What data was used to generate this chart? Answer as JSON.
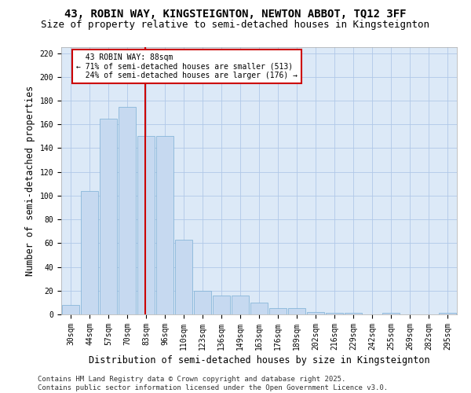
{
  "title_line1": "43, ROBIN WAY, KINGSTEIGNTON, NEWTON ABBOT, TQ12 3FF",
  "title_line2": "Size of property relative to semi-detached houses in Kingsteignton",
  "xlabel": "Distribution of semi-detached houses by size in Kingsteignton",
  "ylabel": "Number of semi-detached properties",
  "categories": [
    "30sqm",
    "44sqm",
    "57sqm",
    "70sqm",
    "83sqm",
    "96sqm",
    "110sqm",
    "123sqm",
    "136sqm",
    "149sqm",
    "163sqm",
    "176sqm",
    "189sqm",
    "202sqm",
    "216sqm",
    "229sqm",
    "242sqm",
    "255sqm",
    "269sqm",
    "282sqm",
    "295sqm"
  ],
  "values": [
    8,
    104,
    165,
    175,
    150,
    150,
    63,
    20,
    16,
    16,
    10,
    5,
    5,
    2,
    1,
    1,
    0,
    1,
    0,
    0,
    1
  ],
  "bar_color": "#c6d9f0",
  "bar_edge_color": "#7bafd4",
  "background_color": "#dce9f7",
  "grid_color": "#b0c8e8",
  "property_label": "43 ROBIN WAY: 88sqm",
  "pct_smaller": "71% of semi-detached houses are smaller (513)",
  "pct_larger": "24% of semi-detached houses are larger (176)",
  "annotation_box_color": "#ffffff",
  "annotation_box_edge": "#cc0000",
  "red_line_color": "#cc0000",
  "ylim": [
    0,
    225
  ],
  "yticks": [
    0,
    20,
    40,
    60,
    80,
    100,
    120,
    140,
    160,
    180,
    200,
    220
  ],
  "footer_line1": "Contains HM Land Registry data © Crown copyright and database right 2025.",
  "footer_line2": "Contains public sector information licensed under the Open Government Licence v3.0.",
  "title_fontsize": 10,
  "subtitle_fontsize": 9,
  "axis_label_fontsize": 8.5,
  "tick_fontsize": 7,
  "annotation_fontsize": 7,
  "footer_fontsize": 6.5
}
